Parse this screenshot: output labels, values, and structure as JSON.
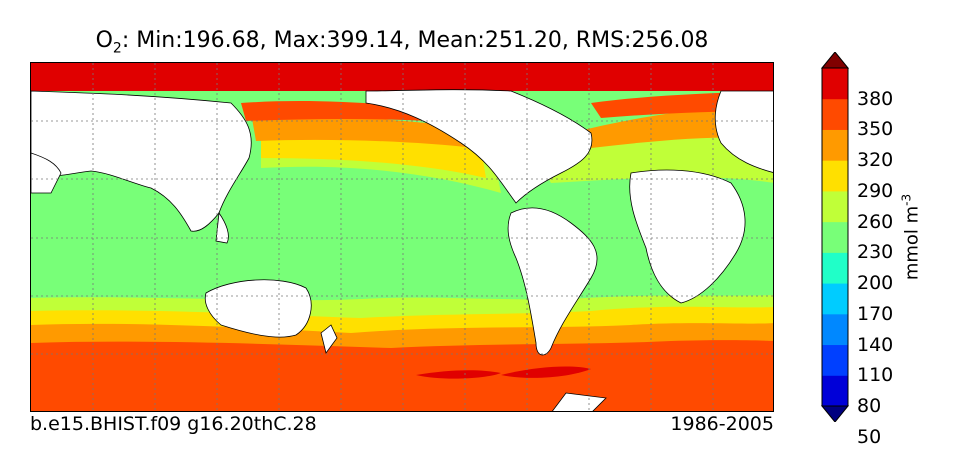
{
  "title": {
    "variable": "O",
    "subscript": "2",
    "stats": ": Min:196.68, Max:399.14, Mean:251.20, RMS:256.08"
  },
  "footer": {
    "case_name": "b.e15.BHIST.f09 g16.20thC.28",
    "period": "1986-2005"
  },
  "colorbar": {
    "units": "mmol m",
    "units_exponent": "-3",
    "ticks": [
      "380",
      "350",
      "320",
      "290",
      "260",
      "230",
      "200",
      "170",
      "140",
      "110",
      "80",
      "50"
    ],
    "colors": [
      "#000080",
      "#0000d8",
      "#0040ff",
      "#0088ff",
      "#00ccff",
      "#20ffc8",
      "#78ff78",
      "#c0ff38",
      "#ffe000",
      "#ff9a00",
      "#ff4a00",
      "#e00000",
      "#800000"
    ]
  },
  "map": {
    "ocean_bands_colors": {
      "deep_red": "#800000",
      "red": "#e00000",
      "orange_red": "#ff4a00",
      "orange": "#ff9a00",
      "yellow": "#ffe000",
      "yellow_green": "#c0ff38",
      "green": "#78ff78",
      "land": "#ffffff"
    }
  }
}
